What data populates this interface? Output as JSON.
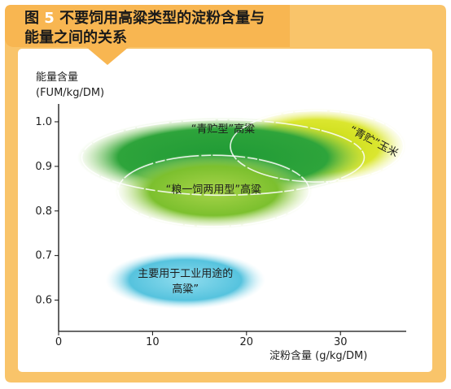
{
  "figure": {
    "title_prefix": "图",
    "title_number": "5",
    "title_line1": "不要饲用高粱类型的淀粉含量与",
    "title_line2": "能量之间的关系",
    "frame_color": "#F9C46A",
    "header_color": "#F8B651"
  },
  "chart_data": {
    "type": "scatter",
    "title": "图 5 不要饲用高粱类型的淀粉含量与能量之间的关系",
    "xlabel": "淀粉含量 (g/kg/DM)",
    "ylabel_line1": "能量含量",
    "ylabel_line2": "(FUM/kg/DM)",
    "xlim": [
      0,
      37
    ],
    "ylim": [
      0.53,
      1.04
    ],
    "x_ticks": [
      {
        "value": 0,
        "label": "0"
      },
      {
        "value": 10,
        "label": "10"
      },
      {
        "value": 20,
        "label": "20"
      },
      {
        "value": 30,
        "label": "30"
      }
    ],
    "y_ticks": [
      {
        "value": 0.6,
        "label": "0.6"
      },
      {
        "value": 0.7,
        "label": "0.7"
      },
      {
        "value": 0.8,
        "label": "0.8"
      },
      {
        "value": 0.9,
        "label": "0.9"
      },
      {
        "value": 1.0,
        "label": "1.0"
      }
    ],
    "regions": [
      {
        "label": "“青贮”玉米",
        "x_range": [
          18,
          37
        ],
        "y_range": [
          0.86,
          1.03
        ],
        "color": "#D8E418",
        "label_rotation": 28
      },
      {
        "label": "“青贮型”高粱",
        "x_range": [
          2,
          33
        ],
        "y_range": [
          0.83,
          1.01
        ],
        "color": "#2E9E3A",
        "label_rotation": 0
      },
      {
        "label": "“粮一饲两用型”高粱",
        "x_range": [
          6,
          27
        ],
        "y_range": [
          0.76,
          0.93
        ],
        "color": "#74BD2A",
        "label_rotation": 0
      },
      {
        "label": "主要用于工业用途的高粱”",
        "x_range": [
          5,
          22
        ],
        "y_range": [
          0.58,
          0.71
        ],
        "color": "#58C6DD",
        "label_rotation": 0
      }
    ],
    "grid": false,
    "legend": "none"
  }
}
